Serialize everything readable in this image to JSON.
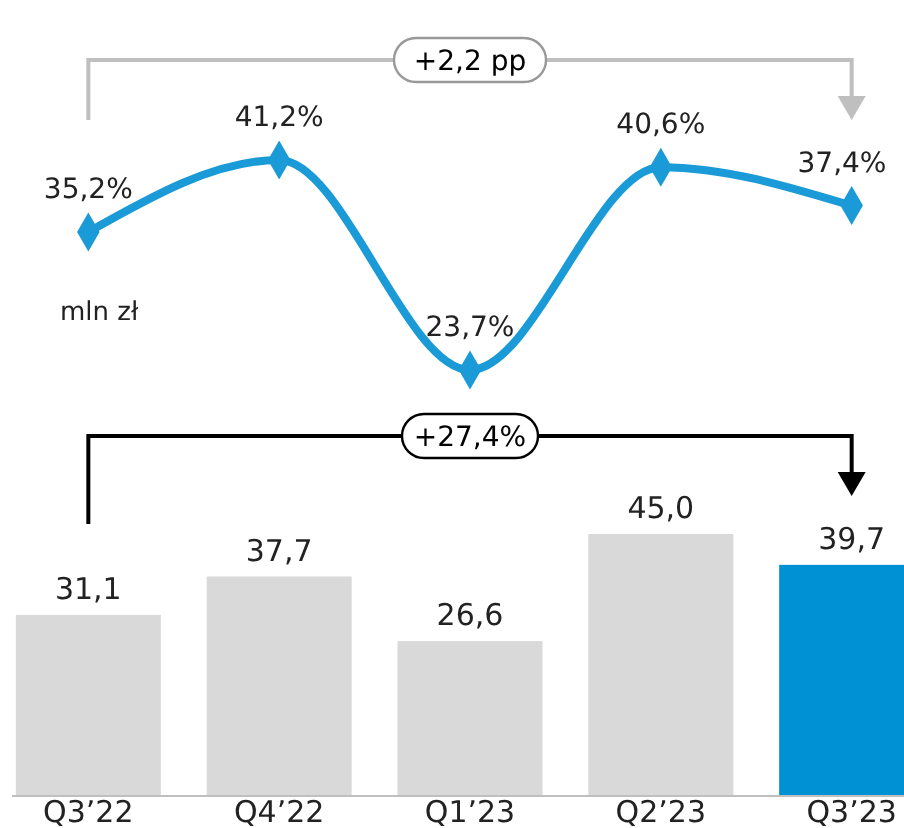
{
  "chart_data": [
    {
      "type": "line",
      "categories": [
        null,
        null,
        null,
        null,
        null
      ],
      "values": [
        35.2,
        41.2,
        23.7,
        40.6,
        37.4
      ],
      "value_labels": [
        "35,2%",
        "41,2%",
        "23,7%",
        "40,6%",
        "37,4%"
      ],
      "color": "#1a9ad6",
      "marker": "diamond",
      "annotations": [
        "+2,2 pp"
      ]
    },
    {
      "type": "bar",
      "categories": [
        "Q3’22",
        "Q4’22",
        "Q1’23",
        "Q2’23",
        "Q3’23"
      ],
      "values": [
        31.1,
        37.7,
        26.6,
        45.0,
        39.7
      ],
      "value_labels": [
        "31,1",
        "37,7",
        "26,6",
        "45,0",
        "39,7"
      ],
      "colors": [
        "#d9d9d9",
        "#d9d9d9",
        "#d9d9d9",
        "#d9d9d9",
        "#0091d5"
      ],
      "ylabel": "mln zł",
      "tick_labels": "x",
      "annotations": [
        "+27,4%"
      ]
    }
  ]
}
